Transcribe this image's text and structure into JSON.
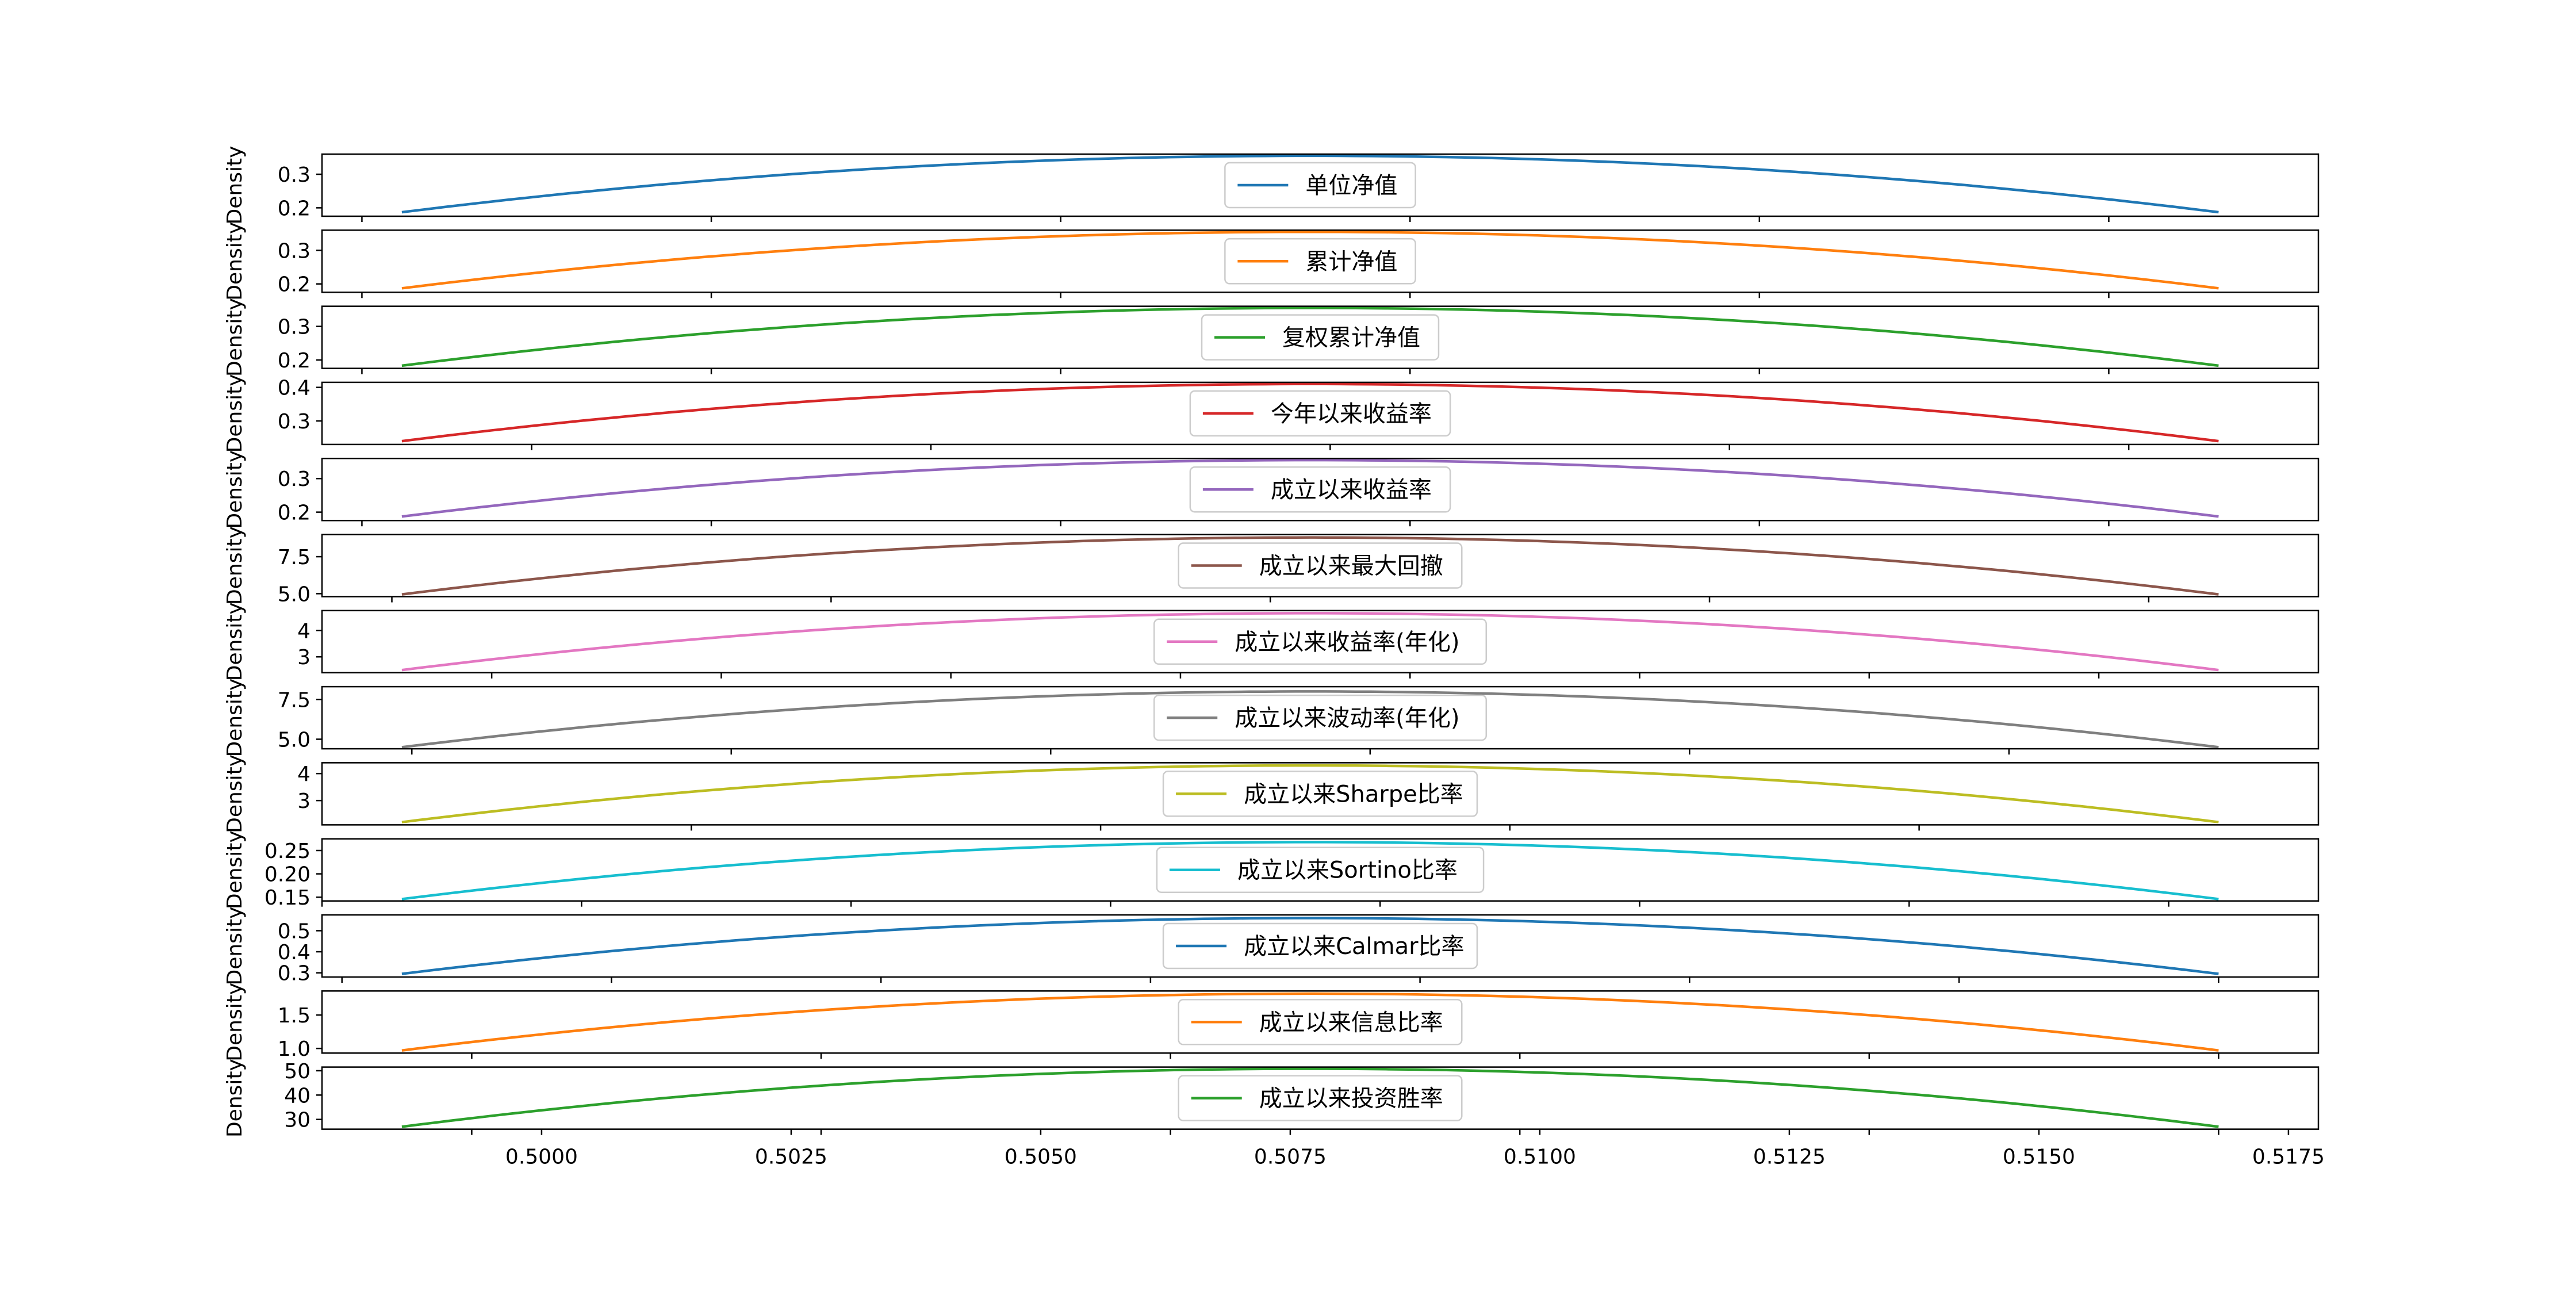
{
  "chart_data": {
    "type": "line",
    "subplots": 13,
    "sharex": true,
    "xlim": [
      0.4978,
      0.5178
    ],
    "x_ticks": [
      "0.5000",
      "0.5025",
      "0.5050",
      "0.5075",
      "0.5100",
      "0.5125",
      "0.5150",
      "0.5175"
    ],
    "x_tick_values": [
      0.5,
      0.5025,
      0.505,
      0.5075,
      0.51,
      0.5125,
      0.515,
      0.5175
    ],
    "x_range": [
      0.4986,
      0.5168
    ],
    "ylabel": "Density",
    "legend_loc": "center",
    "series": [
      {
        "name": "单位净值",
        "color": "#1f77b4",
        "ylim": [
          0.175,
          0.36
        ],
        "yticks": [
          "0.2",
          "0.3"
        ],
        "ytick_values": [
          0.2,
          0.3
        ],
        "y_min": 0.187,
        "y_max": 0.355,
        "x_peak": 0.5077,
        "sub_ticks": [
          0.4982,
          0.5017,
          0.5052,
          0.5087,
          0.5122,
          0.5157
        ]
      },
      {
        "name": "累计净值",
        "color": "#ff7f0e",
        "ylim": [
          0.175,
          0.36
        ],
        "yticks": [
          "0.2",
          "0.3"
        ],
        "ytick_values": [
          0.2,
          0.3
        ],
        "y_min": 0.187,
        "y_max": 0.355,
        "x_peak": 0.5077,
        "sub_ticks": [
          0.4982,
          0.5017,
          0.5052,
          0.5087,
          0.5122,
          0.5157
        ]
      },
      {
        "name": "复权累计净值",
        "color": "#2ca02c",
        "ylim": [
          0.175,
          0.36
        ],
        "yticks": [
          "0.2",
          "0.3"
        ],
        "ytick_values": [
          0.2,
          0.3
        ],
        "y_min": 0.183,
        "y_max": 0.355,
        "x_peak": 0.5077,
        "sub_ticks": [
          0.4982,
          0.5017,
          0.5052,
          0.5087,
          0.5122,
          0.5157
        ]
      },
      {
        "name": "今年以来收益率",
        "color": "#d62728",
        "ylim": [
          0.23,
          0.415
        ],
        "yticks": [
          "0.3",
          "0.4"
        ],
        "ytick_values": [
          0.3,
          0.4
        ],
        "y_min": 0.24,
        "y_max": 0.41,
        "x_peak": 0.5077,
        "sub_ticks": [
          0.4999,
          0.5039,
          0.5079,
          0.5119,
          0.5159
        ]
      },
      {
        "name": "成立以来收益率",
        "color": "#9467bd",
        "ylim": [
          0.175,
          0.36
        ],
        "yticks": [
          "0.2",
          "0.3"
        ],
        "ytick_values": [
          0.2,
          0.3
        ],
        "y_min": 0.187,
        "y_max": 0.355,
        "x_peak": 0.5077,
        "sub_ticks": [
          0.4982,
          0.5017,
          0.5052,
          0.5087,
          0.5122,
          0.5157
        ]
      },
      {
        "name": "成立以来最大回撤",
        "color": "#8c564b",
        "ylim": [
          4.8,
          9.0
        ],
        "yticks": [
          "5.0",
          "7.5"
        ],
        "ytick_values": [
          5.0,
          7.5
        ],
        "y_min": 4.95,
        "y_max": 8.8,
        "x_peak": 0.5077,
        "sub_ticks": [
          0.4985,
          0.5029,
          0.5073,
          0.5117,
          0.5161
        ]
      },
      {
        "name": "成立以来收益率(年化)",
        "color": "#e377c2",
        "ylim": [
          2.4,
          4.75
        ],
        "yticks": [
          "3",
          "4"
        ],
        "ytick_values": [
          3,
          4
        ],
        "y_min": 2.5,
        "y_max": 4.65,
        "x_peak": 0.5077,
        "sub_ticks": [
          0.4972,
          0.4995,
          0.5018,
          0.5041,
          0.5064,
          0.5087,
          0.511,
          0.5133,
          0.5156
        ]
      },
      {
        "name": "成立以来波动率(年化)",
        "color": "#7f7f7f",
        "ylim": [
          4.4,
          8.3
        ],
        "yticks": [
          "5.0",
          "7.5"
        ],
        "ytick_values": [
          5.0,
          7.5
        ],
        "y_min": 4.5,
        "y_max": 8.0,
        "x_peak": 0.5077,
        "sub_ticks": [
          0.4987,
          0.5019,
          0.5051,
          0.5083,
          0.5115,
          0.5147
        ]
      },
      {
        "name": "成立以来Sharpe比率",
        "color": "#bcbd22",
        "ylim": [
          2.1,
          4.4
        ],
        "yticks": [
          "3",
          "4"
        ],
        "ytick_values": [
          3,
          4
        ],
        "y_min": 2.2,
        "y_max": 4.3,
        "x_peak": 0.5077,
        "sub_ticks": [
          0.5015,
          0.5056,
          0.5097,
          0.5138
        ]
      },
      {
        "name": "成立以来Sortino比率",
        "color": "#17becf",
        "ylim": [
          0.142,
          0.275
        ],
        "yticks": [
          "0.15",
          "0.20",
          "0.25"
        ],
        "ytick_values": [
          0.15,
          0.2,
          0.25
        ],
        "y_min": 0.146,
        "y_max": 0.268,
        "x_peak": 0.5077,
        "sub_ticks": [
          0.4978,
          0.5004,
          0.5031,
          0.5057,
          0.5084,
          0.511,
          0.5137,
          0.5163
        ]
      },
      {
        "name": "成立以来Calmar比率",
        "color": "#1f77b4",
        "ylim": [
          0.28,
          0.575
        ],
        "yticks": [
          "0.3",
          "0.4",
          "0.5"
        ],
        "ytick_values": [
          0.3,
          0.4,
          0.5
        ],
        "y_min": 0.295,
        "y_max": 0.56,
        "x_peak": 0.5077,
        "sub_ticks": [
          0.498,
          0.5007,
          0.5034,
          0.5061,
          0.5088,
          0.5115,
          0.5142,
          0.5168
        ]
      },
      {
        "name": "成立以来信息比率",
        "color": "#ff7f0e",
        "ylim": [
          0.93,
          1.86
        ],
        "yticks": [
          "1.0",
          "1.5"
        ],
        "ytick_values": [
          1.0,
          1.5
        ],
        "y_min": 0.97,
        "y_max": 1.82,
        "x_peak": 0.5077,
        "sub_ticks": [
          0.4993,
          0.5028,
          0.5063,
          0.5098,
          0.5133,
          0.5168
        ]
      },
      {
        "name": "成立以来投资胜率",
        "color": "#2ca02c",
        "ylim": [
          26,
          51.5
        ],
        "yticks": [
          "30",
          "40",
          "50"
        ],
        "ytick_values": [
          30,
          40,
          50
        ],
        "y_min": 27,
        "y_max": 50.8,
        "x_peak": 0.5077,
        "sub_ticks": [
          0.4993,
          0.5028,
          0.5063,
          0.5098,
          0.5133,
          0.5168
        ]
      }
    ]
  }
}
